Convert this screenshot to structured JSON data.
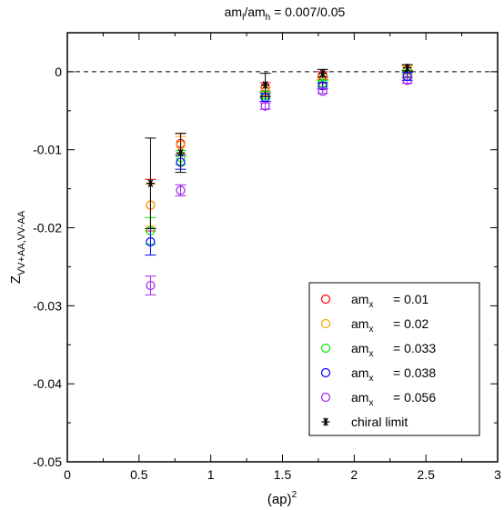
{
  "chart_data": {
    "type": "scatter",
    "title": {
      "main": "am",
      "sub1": "l",
      "mid": "/am",
      "sub2": "h",
      "tail": " = 0.007/0.05"
    },
    "xlabel": {
      "main": "(ap)",
      "sup": "2"
    },
    "ylabel": {
      "main": "Z",
      "sub": "VV+AA,VV-AA"
    },
    "xlim": [
      0,
      3
    ],
    "ylim": [
      -0.05,
      0.005
    ],
    "xticks": [
      0,
      0.5,
      1,
      1.5,
      2,
      2.5,
      3
    ],
    "xtick_labels": [
      "0",
      "0.5",
      "1",
      "1.5",
      "2",
      "2.5",
      "3"
    ],
    "yticks": [
      -0.05,
      -0.04,
      -0.03,
      -0.02,
      -0.01,
      0
    ],
    "ytick_labels": [
      "-0.05",
      "-0.04",
      "-0.03",
      "-0.02",
      "-0.01",
      "0"
    ],
    "reference_line": {
      "y": 0,
      "style": "dashed"
    },
    "legend_position": "lower-right",
    "series": [
      {
        "name": "am",
        "sub": "x",
        "value_text": "= 0.01",
        "color": "#ff0000",
        "marker": "circle",
        "points": [
          {
            "x": 0.58,
            "y": -0.0171,
            "err": 0.0033
          },
          {
            "x": 0.79,
            "y": -0.0092,
            "err": 0.0013
          },
          {
            "x": 1.38,
            "y": -0.002,
            "err": 0.0006
          },
          {
            "x": 1.78,
            "y": -0.0005,
            "err": 0.0005
          },
          {
            "x": 2.37,
            "y": 0.0003,
            "err": 0.0006
          }
        ]
      },
      {
        "name": "am",
        "sub": "x",
        "value_text": "= 0.02",
        "color": "#ffa500",
        "marker": "circle",
        "points": [
          {
            "x": 0.58,
            "y": -0.0171,
            "err": 0.0027
          },
          {
            "x": 0.79,
            "y": -0.0094,
            "err": 0.0011
          },
          {
            "x": 1.38,
            "y": -0.0025,
            "err": 0.0006
          },
          {
            "x": 1.78,
            "y": -0.001,
            "err": 0.0005
          },
          {
            "x": 2.37,
            "y": 0.0002,
            "err": 0.0005
          }
        ]
      },
      {
        "name": "am",
        "sub": "x",
        "value_text": "= 0.033",
        "color": "#00ee00",
        "marker": "circle",
        "points": [
          {
            "x": 0.58,
            "y": -0.0204,
            "err": 0.0017
          },
          {
            "x": 0.79,
            "y": -0.011,
            "err": 0.0009
          },
          {
            "x": 1.38,
            "y": -0.003,
            "err": 0.0005
          },
          {
            "x": 1.78,
            "y": -0.0015,
            "err": 0.0004
          },
          {
            "x": 2.37,
            "y": -0.0003,
            "err": 0.0005
          }
        ]
      },
      {
        "name": "am",
        "sub": "x",
        "value_text": "= 0.038",
        "color": "#0000ff",
        "marker": "circle",
        "points": [
          {
            "x": 0.58,
            "y": -0.0218,
            "err": 0.0017
          },
          {
            "x": 0.79,
            "y": -0.0116,
            "err": 0.0009
          },
          {
            "x": 1.38,
            "y": -0.0033,
            "err": 0.0005
          },
          {
            "x": 1.78,
            "y": -0.0018,
            "err": 0.0004
          },
          {
            "x": 2.37,
            "y": -0.0006,
            "err": 0.0005
          }
        ]
      },
      {
        "name": "am",
        "sub": "x",
        "value_text": "= 0.056",
        "color": "#a020f0",
        "marker": "circle",
        "points": [
          {
            "x": 0.58,
            "y": -0.0274,
            "err": 0.0012
          },
          {
            "x": 0.79,
            "y": -0.0152,
            "err": 0.0007
          },
          {
            "x": 1.38,
            "y": -0.0044,
            "err": 0.0004
          },
          {
            "x": 1.78,
            "y": -0.0025,
            "err": 0.0003
          },
          {
            "x": 2.37,
            "y": -0.0011,
            "err": 0.0004
          }
        ]
      },
      {
        "name": "chiral limit",
        "color": "#000000",
        "marker": "star",
        "points": [
          {
            "x": 0.58,
            "y": -0.0143,
            "err": 0.0058
          },
          {
            "x": 0.79,
            "y": -0.0104,
            "err": 0.0025
          },
          {
            "x": 1.38,
            "y": -0.0017,
            "err": 0.0015
          },
          {
            "x": 1.78,
            "y": -0.0002,
            "err": 0.0005
          },
          {
            "x": 2.37,
            "y": 0.0005,
            "err": 0.0004
          }
        ]
      }
    ]
  }
}
